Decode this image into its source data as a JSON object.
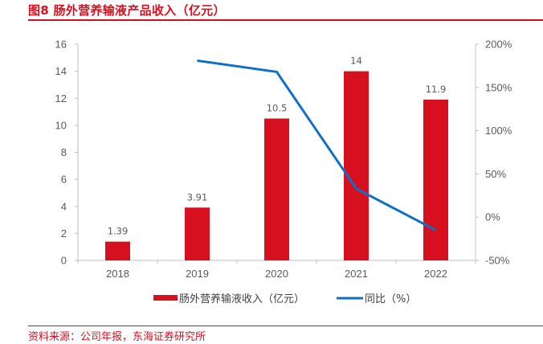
{
  "header": {
    "title": "图8  肠外营养输液产品收入（亿元）"
  },
  "footer": {
    "source": "资料来源：公司年报，东海证券研究所"
  },
  "colors": {
    "accent": "#d7101f",
    "bar": "#d7101f",
    "line": "#0f6fc6",
    "axis": "#bfbfbf",
    "text": "#595959"
  },
  "chart_data": {
    "type": "bar",
    "title": "肠外营养输液产品收入（亿元）",
    "categories": [
      "2018",
      "2019",
      "2020",
      "2021",
      "2022"
    ],
    "series": [
      {
        "name": "肠外营养输液收入（亿元）",
        "type": "bar",
        "axis": "left",
        "values": [
          1.39,
          3.91,
          10.5,
          14,
          11.9
        ],
        "labels": [
          "1.39",
          "3.91",
          "10.5",
          "14",
          "11.9"
        ]
      },
      {
        "name": "同比（%）",
        "type": "line",
        "axis": "right",
        "values": [
          null,
          181,
          168,
          33,
          -15
        ]
      }
    ],
    "left_axis": {
      "ylim": [
        0,
        16
      ],
      "ticks": [
        0,
        2,
        4,
        6,
        8,
        10,
        12,
        14,
        16
      ],
      "tick_labels": [
        "0",
        "2",
        "4",
        "6",
        "8",
        "10",
        "12",
        "14",
        "16"
      ]
    },
    "right_axis": {
      "ylim": [
        -50,
        200
      ],
      "ticks": [
        -50,
        0,
        50,
        100,
        150,
        200
      ],
      "tick_labels": [
        "-50%",
        "0%",
        "50%",
        "100%",
        "150%",
        "200%"
      ]
    },
    "xlabel": "",
    "ylabel": "",
    "grid": false,
    "legend_position": "bottom",
    "legend": [
      {
        "label": "肠外营养输液收入（亿元）",
        "marker": "bar"
      },
      {
        "label": "同比（%）",
        "marker": "line"
      }
    ]
  }
}
